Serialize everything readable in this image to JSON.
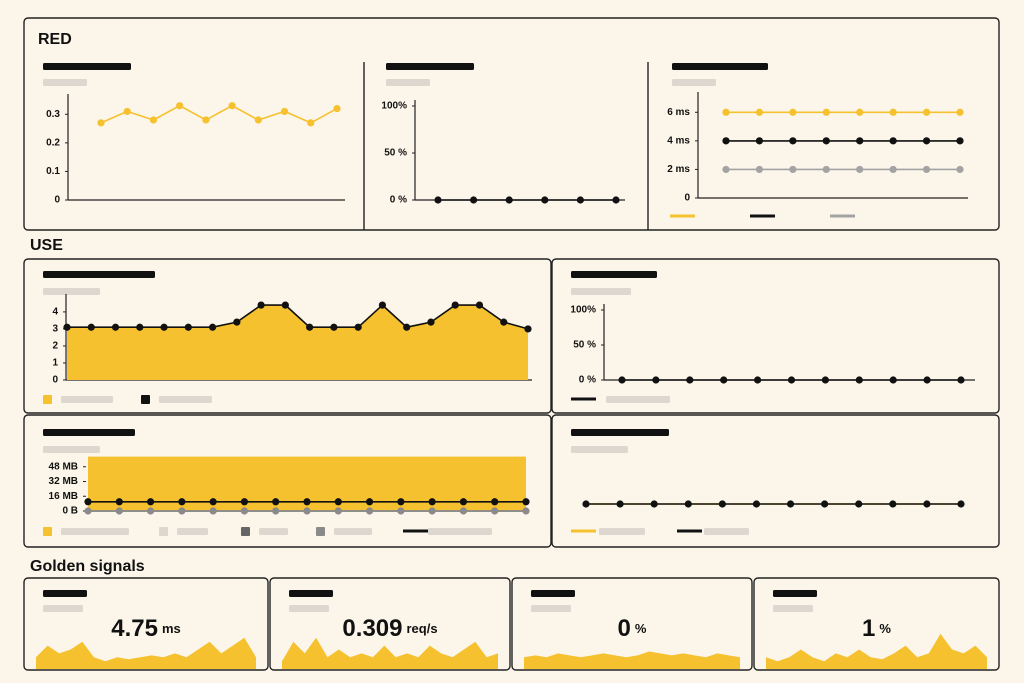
{
  "sections": [
    {
      "title": "RED",
      "panels": [
        {
          "chart": {
            "type": "line",
            "ylim": [
              0,
              0.35
            ],
            "yticks": [
              0,
              0.1,
              0.2,
              0.3
            ],
            "series": [
              {
                "color": "#f5c12e",
                "markers": true,
                "values": [
                  0.27,
                  0.31,
                  0.28,
                  0.33,
                  0.28,
                  0.33,
                  0.28,
                  0.31,
                  0.27,
                  0.32
                ]
              }
            ]
          }
        },
        {
          "chart": {
            "type": "line",
            "ylim": [
              0,
              100
            ],
            "yticks": [
              {
                "value": 0,
                "label": "0 %"
              },
              {
                "value": 50,
                "label": "50 %"
              },
              {
                "value": 100,
                "label": "100%"
              }
            ],
            "series": [
              {
                "color": "#111111",
                "markers": true,
                "values": [
                  0,
                  0,
                  0,
                  0,
                  0,
                  0
                ]
              }
            ]
          }
        },
        {
          "chart": {
            "type": "line",
            "ylim": [
              0,
              7
            ],
            "yticks": [
              0,
              {
                "value": 2,
                "label": "2 ms"
              },
              {
                "value": 4,
                "label": "4 ms"
              },
              {
                "value": 6,
                "label": "6 ms"
              }
            ],
            "series": [
              {
                "color": "#f5c12e",
                "markers": true,
                "values": [
                  6,
                  6,
                  6,
                  6,
                  6,
                  6,
                  6,
                  6
                ]
              },
              {
                "color": "#111111",
                "markers": true,
                "values": [
                  4,
                  4,
                  4,
                  4,
                  4,
                  4,
                  4,
                  4
                ]
              },
              {
                "color": "#a3a3a3",
                "markers": true,
                "values": [
                  2,
                  2,
                  2,
                  2,
                  2,
                  2,
                  2,
                  2
                ]
              }
            ]
          }
        }
      ]
    },
    {
      "title": "USE",
      "panels": [
        {
          "chart": {
            "type": "area",
            "ylim": [
              0,
              4.7
            ],
            "yticks": [
              0,
              1,
              2,
              3,
              4
            ],
            "series": [
              {
                "color": "#f5c12e",
                "fill": true,
                "line_color": "#111111",
                "markers": true,
                "values": [
                  3.1,
                  3.1,
                  3.1,
                  3.1,
                  3.1,
                  3.1,
                  3.1,
                  3.4,
                  4.4,
                  4.4,
                  3.1,
                  3.1,
                  3.1,
                  4.4,
                  3.1,
                  3.4,
                  4.4,
                  4.4,
                  3.4,
                  3.0
                ]
              }
            ]
          }
        },
        {
          "chart": {
            "type": "line",
            "ylim": [
              0,
              100
            ],
            "yticks": [
              {
                "value": 0,
                "label": "0 %"
              },
              {
                "value": 50,
                "label": "50 %"
              },
              {
                "value": 100,
                "label": "100%"
              }
            ],
            "series": [
              {
                "color": "#111111",
                "markers": true,
                "values": [
                  0,
                  0,
                  0,
                  0,
                  0,
                  0,
                  0,
                  0,
                  0,
                  0,
                  0
                ]
              }
            ]
          }
        },
        {
          "chart": {
            "type": "area",
            "ylim": [
              0,
              64
            ],
            "yticks": [
              {
                "value": 0,
                "label": "0 B"
              },
              {
                "value": 16,
                "label": "16 MB"
              },
              {
                "value": 32,
                "label": "32 MB"
              },
              {
                "value": 48,
                "label": "48 MB"
              }
            ],
            "series": [
              {
                "color": "#f5c12e",
                "fill": true,
                "markers": false,
                "values": [
                  59,
                  59,
                  59,
                  59,
                  59,
                  59,
                  59,
                  59,
                  59,
                  59,
                  59,
                  59,
                  59,
                  59,
                  59
                ]
              },
              {
                "color": "#ddd8ce",
                "markers": false,
                "values": [
                  0,
                  0,
                  0,
                  0,
                  0,
                  0,
                  0,
                  0,
                  0,
                  0,
                  0,
                  0,
                  0,
                  0,
                  0
                ]
              },
              {
                "color": "#666666",
                "markers": false,
                "values": [
                  0,
                  0,
                  0,
                  0,
                  0,
                  0,
                  0,
                  0,
                  0,
                  0,
                  0,
                  0,
                  0,
                  0,
                  0
                ]
              },
              {
                "color": "#8a8a8a",
                "markers": true,
                "values": [
                  0,
                  0,
                  0,
                  0,
                  0,
                  0,
                  0,
                  0,
                  0,
                  0,
                  0,
                  0,
                  0,
                  0,
                  0
                ]
              },
              {
                "color": "#111111",
                "markers": true,
                "values": [
                  10,
                  10,
                  10,
                  10,
                  10,
                  10,
                  10,
                  10,
                  10,
                  10,
                  10,
                  10,
                  10,
                  10,
                  10
                ]
              }
            ]
          }
        },
        {
          "chart": {
            "type": "line",
            "ylim": [
              -1,
              1
            ],
            "series": [
              {
                "color": "#f5c12e",
                "markers": false,
                "values": [
                  0,
                  0,
                  0,
                  0,
                  0,
                  0,
                  0,
                  0,
                  0,
                  0,
                  0,
                  0
                ]
              },
              {
                "color": "#111111",
                "markers": true,
                "values": [
                  0,
                  0,
                  0,
                  0,
                  0,
                  0,
                  0,
                  0,
                  0,
                  0,
                  0,
                  0
                ]
              }
            ]
          }
        }
      ]
    },
    {
      "title": "Golden signals",
      "panels": [
        {
          "chart": {
            "type": "stat",
            "value": 4.75,
            "unit": "ms",
            "color": "#f5c12e",
            "ylim": [
              0,
              1
            ],
            "values": [
              0.3,
              0.6,
              0.4,
              0.5,
              0.7,
              0.3,
              0.2,
              0.3,
              0.25,
              0.3,
              0.35,
              0.3,
              0.4,
              0.3,
              0.5,
              0.7,
              0.4,
              0.6,
              0.8,
              0.3
            ]
          }
        },
        {
          "chart": {
            "type": "stat",
            "value": 0.309,
            "unit": "req/s",
            "color": "#f5c12e",
            "ylim": [
              0,
              1
            ],
            "values": [
              0.2,
              0.7,
              0.4,
              0.8,
              0.3,
              0.5,
              0.3,
              0.4,
              0.3,
              0.6,
              0.3,
              0.4,
              0.3,
              0.6,
              0.4,
              0.3,
              0.5,
              0.7,
              0.3,
              0.4
            ]
          }
        },
        {
          "chart": {
            "type": "stat",
            "value": 0,
            "unit": "%",
            "color": "#f5c12e",
            "ylim": [
              0,
              1
            ],
            "values": [
              0.3,
              0.35,
              0.3,
              0.4,
              0.35,
              0.3,
              0.35,
              0.4,
              0.35,
              0.3,
              0.35,
              0.45,
              0.4,
              0.35,
              0.4,
              0.35,
              0.3,
              0.4,
              0.35,
              0.3
            ]
          }
        },
        {
          "chart": {
            "type": "stat",
            "value": 1,
            "unit": "%",
            "color": "#f5c12e",
            "ylim": [
              0,
              1
            ],
            "values": [
              0.3,
              0.2,
              0.3,
              0.5,
              0.3,
              0.2,
              0.4,
              0.3,
              0.5,
              0.3,
              0.25,
              0.4,
              0.6,
              0.3,
              0.4,
              0.9,
              0.5,
              0.4,
              0.6,
              0.3
            ]
          }
        }
      ]
    }
  ]
}
